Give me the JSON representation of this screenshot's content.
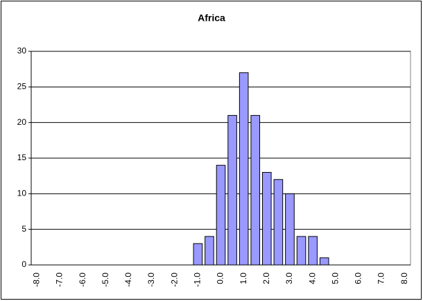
{
  "chart_data": {
    "type": "bar",
    "title": "Africa",
    "categories": [
      "-8.0",
      null,
      "-7.0",
      null,
      "-6.0",
      null,
      "-5.0",
      null,
      "-4.0",
      null,
      "-3.0",
      null,
      "-2.0",
      null,
      "-1.0",
      null,
      "0.0",
      null,
      "1.0",
      null,
      "2.0",
      null,
      "3.0",
      null,
      "4.0",
      null,
      "5.0",
      null,
      "6.0",
      null,
      "7.0",
      null,
      "8.0"
    ],
    "values": [
      0,
      0,
      0,
      0,
      0,
      0,
      0,
      0,
      0,
      0,
      0,
      0,
      0,
      0,
      3,
      4,
      14,
      21,
      27,
      21,
      13,
      12,
      10,
      4,
      4,
      1,
      0,
      0,
      0,
      0,
      0,
      0,
      0
    ],
    "color": "#9999ff",
    "ylim": [
      0,
      30
    ],
    "yticks": [
      0,
      5,
      10,
      15,
      20,
      25,
      30
    ],
    "grid": true
  }
}
